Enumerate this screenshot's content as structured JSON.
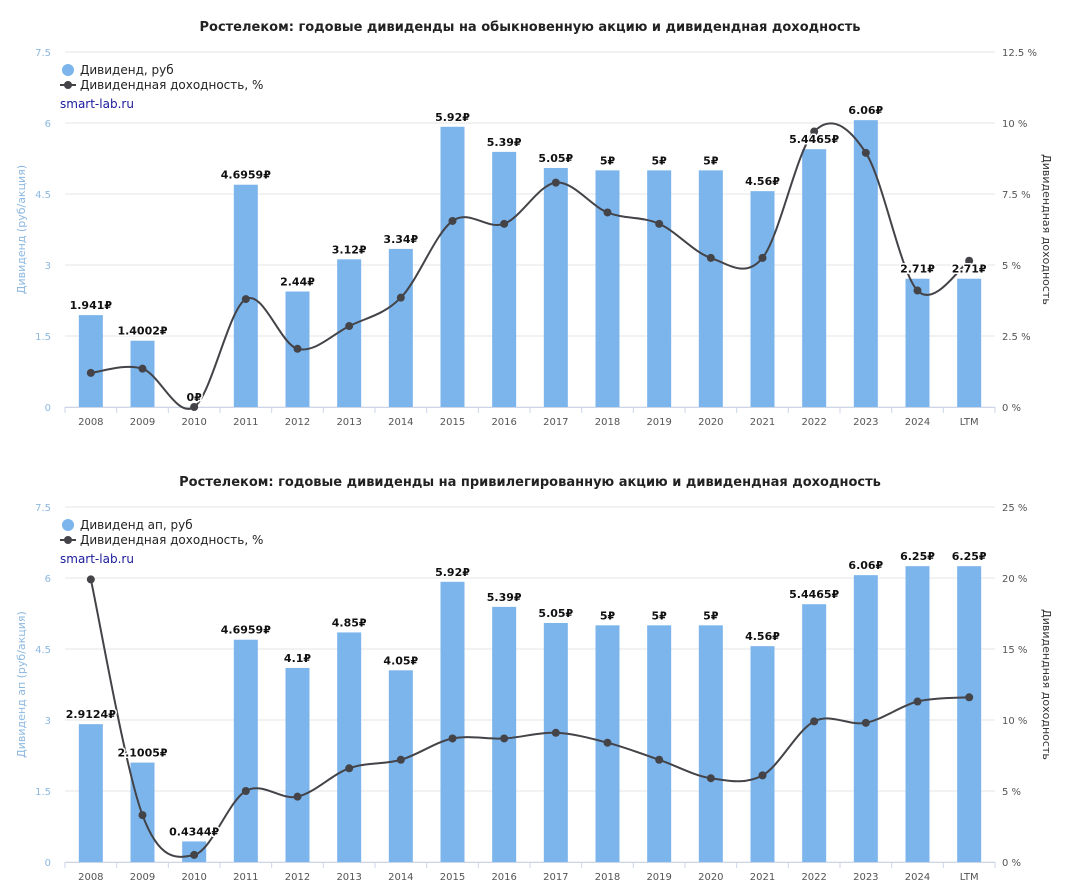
{
  "colors": {
    "bar": "#7cb5ec",
    "line": "#434348",
    "grid": "#e6e6e6",
    "left_axis_text": "#8db8e0"
  },
  "chart_data": [
    {
      "type": "bar+line",
      "title": "Ростелеком: годовые дивиденды на обыкновенную акцию и дивидендная доходность",
      "ylabel": "Дивиденд (руб/акция)",
      "y2label": "Дивидендная доходность",
      "source_label": "smart-lab.ru",
      "categories": [
        "2008",
        "2009",
        "2010",
        "2011",
        "2012",
        "2013",
        "2014",
        "2015",
        "2016",
        "2017",
        "2018",
        "2019",
        "2020",
        "2021",
        "2022",
        "2023",
        "2024",
        "LTM"
      ],
      "series": [
        {
          "name": "Дивиденд, руб",
          "type": "bar",
          "axis": "left",
          "values": [
            1.941,
            1.4002,
            0,
            4.6959,
            2.44,
            3.12,
            3.34,
            5.92,
            5.39,
            5.05,
            5,
            5,
            5,
            4.56,
            5.4465,
            6.06,
            2.71,
            2.71
          ],
          "labels": [
            "1.941₽",
            "1.4002₽",
            "0₽",
            "4.6959₽",
            "2.44₽",
            "3.12₽",
            "3.34₽",
            "5.92₽",
            "5.39₽",
            "5.05₽",
            "5₽",
            "5₽",
            "5₽",
            "4.56₽",
            "5.4465₽",
            "6.06₽",
            "2.71₽",
            "2.71₽"
          ]
        },
        {
          "name": "Дивидендная доходность, %",
          "type": "line",
          "axis": "right",
          "values": [
            1.2,
            1.35,
            0,
            3.8,
            2.05,
            2.85,
            3.85,
            6.55,
            6.45,
            7.9,
            6.85,
            6.45,
            5.25,
            5.25,
            9.7,
            8.95,
            4.1,
            5.15
          ]
        }
      ],
      "ylim": [
        0,
        7.5
      ],
      "yticks": [
        "0",
        "1.5",
        "3",
        "4.5",
        "6",
        "7.5"
      ],
      "y2lim": [
        0,
        12.5
      ],
      "y2ticks": [
        "0 %",
        "2.5 %",
        "5 %",
        "7.5 %",
        "10 %",
        "12.5 %"
      ],
      "legend": "top-left"
    },
    {
      "type": "bar+line",
      "title": "Ростелеком: годовые дивиденды на привилегированную акцию и дивидендная доходность",
      "ylabel": "Дивиденд ап (руб/акция)",
      "y2label": "Дивидендная доходность",
      "source_label": "smart-lab.ru",
      "categories": [
        "2008",
        "2009",
        "2010",
        "2011",
        "2012",
        "2013",
        "2014",
        "2015",
        "2016",
        "2017",
        "2018",
        "2019",
        "2020",
        "2021",
        "2022",
        "2023",
        "2024",
        "LTM"
      ],
      "series": [
        {
          "name": "Дивиденд ап, руб",
          "type": "bar",
          "axis": "left",
          "values": [
            2.9124,
            2.1005,
            0.4344,
            4.6959,
            4.1,
            4.85,
            4.05,
            5.92,
            5.39,
            5.05,
            5,
            5,
            5,
            4.56,
            5.4465,
            6.06,
            6.25,
            6.25
          ],
          "labels": [
            "2.9124₽",
            "2.1005₽",
            "0.4344₽",
            "4.6959₽",
            "4.1₽",
            "4.85₽",
            "4.05₽",
            "5.92₽",
            "5.39₽",
            "5.05₽",
            "5₽",
            "5₽",
            "5₽",
            "4.56₽",
            "5.4465₽",
            "6.06₽",
            "6.25₽",
            "6.25₽"
          ]
        },
        {
          "name": "Дивидендная доходность, %",
          "type": "line",
          "axis": "right",
          "values": [
            19.9,
            3.3,
            0.5,
            5.0,
            4.6,
            6.6,
            7.2,
            8.7,
            8.7,
            9.1,
            8.4,
            7.2,
            5.9,
            6.1,
            9.9,
            9.8,
            11.3,
            11.6
          ]
        }
      ],
      "ylim": [
        0,
        7.5
      ],
      "yticks": [
        "0",
        "1.5",
        "3",
        "4.5",
        "6",
        "7.5"
      ],
      "y2lim": [
        0,
        25
      ],
      "y2ticks": [
        "0 %",
        "5 %",
        "10 %",
        "15 %",
        "20 %",
        "25 %"
      ],
      "legend": "top-left"
    }
  ]
}
